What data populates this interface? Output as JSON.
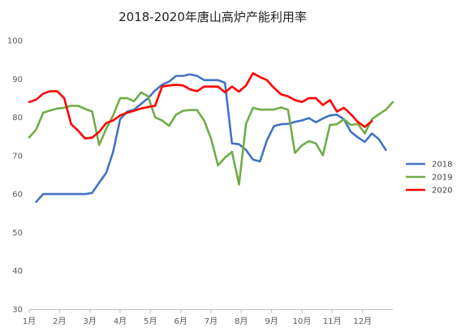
{
  "chart_data": {
    "type": "line",
    "title": "2018-2020年唐山高炉产能利用率",
    "xlabel": "",
    "ylabel": "",
    "x_min": 0,
    "x_max": 52,
    "ylim": [
      30,
      100
    ],
    "y_ticks": [
      30,
      40,
      50,
      60,
      70,
      80,
      90,
      100
    ],
    "x_tick_labels": [
      "1月",
      "2月",
      "3月",
      "4月",
      "5月",
      "6月",
      "7月",
      "8月",
      "9月",
      "10月",
      "11月",
      "12月"
    ],
    "x_tick_positions": [
      0,
      4.33,
      8.67,
      13,
      17.33,
      21.67,
      26,
      30.33,
      34.67,
      39,
      43.33,
      47.67
    ],
    "grid": false,
    "legend_position": "right",
    "series": [
      {
        "name": "2018",
        "color": "#4472C4",
        "x": [
          1,
          2,
          3,
          4,
          5,
          6,
          7,
          8,
          9,
          10,
          11,
          12,
          13,
          14,
          15,
          16,
          17,
          18,
          19,
          20,
          21,
          22,
          23,
          24,
          25,
          26,
          27,
          28,
          29,
          30,
          31,
          32,
          33,
          34,
          35,
          36,
          37,
          38,
          39,
          40,
          41,
          42,
          43,
          44,
          45,
          46,
          47,
          48,
          49,
          50,
          51
        ],
        "values": [
          58,
          60,
          60,
          60,
          60,
          60,
          60,
          60,
          60.3,
          63,
          65.5,
          71,
          79.5,
          81.5,
          82,
          83.5,
          85,
          87,
          88.5,
          89.3,
          90.8,
          90.8,
          91.2,
          90.8,
          89.7,
          89.7,
          89.7,
          89,
          73.2,
          73,
          71.5,
          69,
          68.5,
          74,
          77.7,
          78.2,
          78.3,
          78.8,
          79.2,
          79.8,
          78.7,
          79.7,
          80.5,
          80.7,
          79.5,
          76.2,
          74.8,
          73.6,
          75.8,
          74.3,
          71.5
        ]
      },
      {
        "name": "2019",
        "color": "#70AD47",
        "x": [
          0,
          1,
          2,
          3,
          4,
          5,
          6,
          7,
          8,
          9,
          10,
          11,
          12,
          13,
          14,
          15,
          16,
          17,
          18,
          19,
          20,
          21,
          22,
          23,
          24,
          25,
          26,
          27,
          28,
          29,
          30,
          31,
          32,
          33,
          34,
          35,
          36,
          37,
          38,
          39,
          40,
          41,
          42,
          43,
          44,
          45,
          46,
          47,
          48,
          49,
          50,
          51,
          52
        ],
        "values": [
          74.8,
          76.8,
          81.2,
          81.8,
          82.3,
          82.5,
          83,
          83,
          82.2,
          81.5,
          72.8,
          77,
          80.5,
          85,
          85,
          84.2,
          86.5,
          85.5,
          80,
          79.2,
          77.8,
          80.7,
          81.7,
          81.9,
          81.9,
          79.2,
          74.5,
          67.5,
          69.5,
          71,
          62.5,
          78.3,
          82.5,
          82,
          82,
          82,
          82.6,
          82,
          70.7,
          72.7,
          73.8,
          73.2,
          70.1,
          78,
          78.2,
          79.5,
          78,
          78.3,
          75.8,
          79.5,
          80.8,
          82,
          84
        ]
      },
      {
        "name": "2020",
        "color": "#FF0000",
        "x": [
          0,
          1,
          2,
          3,
          4,
          5,
          6,
          7,
          8,
          9,
          10,
          11,
          12,
          13,
          14,
          15,
          16,
          17,
          18,
          19,
          20,
          21,
          22,
          23,
          24,
          25,
          26,
          27,
          28,
          29,
          30,
          31,
          32,
          33,
          34,
          35,
          36,
          37,
          38,
          39,
          40,
          41,
          42,
          43,
          44,
          45,
          46,
          47,
          48,
          49
        ],
        "values": [
          84,
          84.6,
          86.2,
          86.8,
          86.8,
          85,
          78.2,
          76.5,
          74.5,
          74.7,
          76.2,
          78.5,
          79.2,
          80.5,
          81.2,
          81.7,
          82.3,
          82.7,
          83,
          88,
          88.3,
          88.5,
          88.3,
          87.3,
          86.8,
          88,
          88,
          88,
          86.5,
          88,
          86.7,
          88.3,
          91.5,
          90.5,
          89.7,
          87.7,
          86,
          85.5,
          84.5,
          84,
          85,
          85,
          83.2,
          84.5,
          81.5,
          82.5,
          80.8,
          78.8,
          77.5,
          79
        ]
      }
    ]
  }
}
